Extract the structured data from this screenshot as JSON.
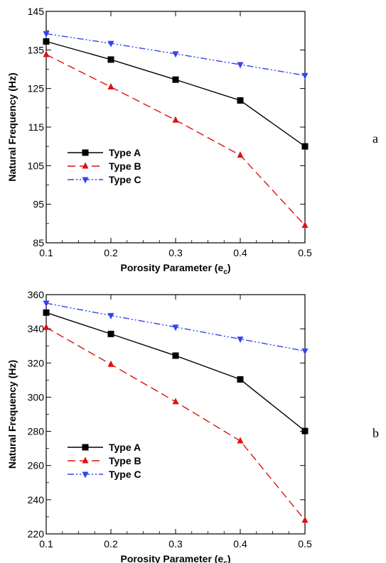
{
  "chart_data": [
    {
      "type": "line",
      "panel_label": "a",
      "xlabel": "Porosity Parameter (e",
      "xlabel_sub": "c",
      "xlabel_end": ")",
      "ylabel": "Natural Frequency (Hz)",
      "x": [
        0.1,
        0.2,
        0.3,
        0.4,
        0.5
      ],
      "xlim": [
        0.1,
        0.5
      ],
      "ylim": [
        85,
        145
      ],
      "xticks": [
        "0.1",
        "0.2",
        "0.3",
        "0.4",
        "0.5"
      ],
      "yticks": [
        "85",
        "95",
        "105",
        "115",
        "125",
        "135",
        "145"
      ],
      "grid": false,
      "legend_position": "lower-left",
      "series": [
        {
          "name": "Type A",
          "values": [
            137.2,
            132.5,
            127.3,
            121.9,
            110.0
          ],
          "color": "#000000",
          "marker": "square",
          "dash": "solid"
        },
        {
          "name": "Type B",
          "values": [
            133.8,
            125.4,
            116.8,
            107.7,
            89.5
          ],
          "color": "#dd1111",
          "marker": "triangle-up",
          "dash": "dashed"
        },
        {
          "name": "Type C",
          "values": [
            139.2,
            136.7,
            134.0,
            131.2,
            128.4
          ],
          "color": "#3344ee",
          "marker": "triangle-down",
          "dash": "dashdotdot"
        }
      ]
    },
    {
      "type": "line",
      "panel_label": "b",
      "xlabel": "Porosity Parameter (e",
      "xlabel_sub": "c",
      "xlabel_end": ")",
      "ylabel": "Natural Frequency (Hz)",
      "x": [
        0.1,
        0.2,
        0.3,
        0.4,
        0.5
      ],
      "xlim": [
        0.1,
        0.5
      ],
      "ylim": [
        220,
        360
      ],
      "xticks": [
        "0.1",
        "0.2",
        "0.3",
        "0.4",
        "0.5"
      ],
      "yticks": [
        "220",
        "240",
        "260",
        "280",
        "300",
        "320",
        "340",
        "360"
      ],
      "grid": false,
      "legend_position": "lower-left",
      "series": [
        {
          "name": "Type A",
          "values": [
            349.5,
            337.0,
            324.3,
            310.4,
            280.2
          ],
          "color": "#000000",
          "marker": "square",
          "dash": "solid"
        },
        {
          "name": "Type B",
          "values": [
            340.8,
            319.2,
            297.3,
            274.4,
            228.0
          ],
          "color": "#dd1111",
          "marker": "triangle-up",
          "dash": "dashed"
        },
        {
          "name": "Type C",
          "values": [
            355.0,
            347.8,
            341.0,
            334.0,
            327.0
          ],
          "color": "#3344ee",
          "marker": "triangle-down",
          "dash": "dashdotdot"
        }
      ]
    }
  ]
}
